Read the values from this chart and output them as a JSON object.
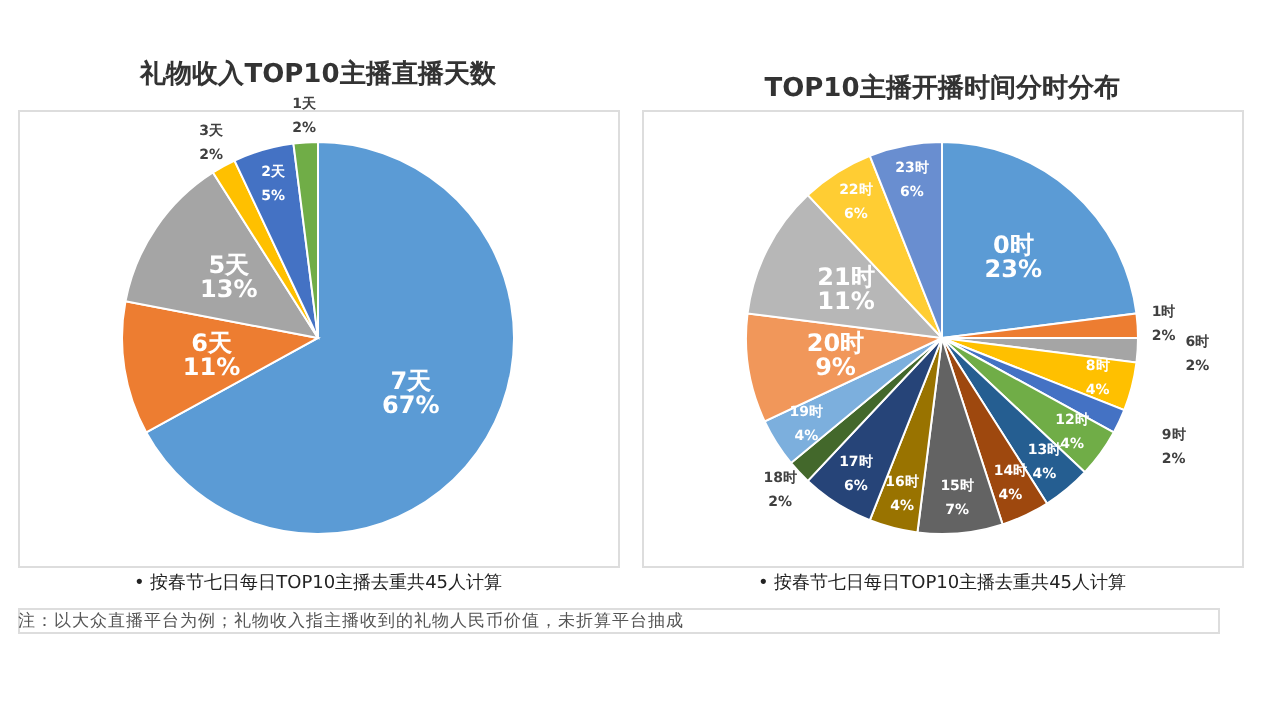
{
  "chart_data": [
    {
      "type": "pie",
      "title": "礼物收入TOP10主播直播天数",
      "categories": [
        "7天",
        "6天",
        "5天",
        "3天",
        "2天",
        "1天"
      ],
      "values": [
        67,
        11,
        13,
        2,
        5,
        2
      ],
      "value_labels": [
        "67%",
        "11%",
        "13%",
        "2%",
        "5%",
        "2%"
      ],
      "colors": [
        "#5b9bd5",
        "#ed7d31",
        "#a5a5a5",
        "#ffc000",
        "#4472c4",
        "#70ad47"
      ],
      "legend": false,
      "annotations": [
        "• 按春节七日每日TOP10主播去重共45人计算",
        "注：以大众直播平台为例；礼物收入指主播收到的礼物人民币价值，未折算平台抽成"
      ]
    },
    {
      "type": "pie",
      "title": "TOP10主播开播时间分时分布",
      "categories": [
        "0时",
        "1时",
        "6时",
        "8时",
        "9时",
        "12时",
        "13时",
        "14时",
        "15时",
        "16时",
        "17时",
        "18时",
        "19时",
        "20时",
        "21时",
        "22时",
        "23时"
      ],
      "values": [
        23,
        2,
        2,
        4,
        2,
        4,
        4,
        4,
        7,
        4,
        6,
        2,
        4,
        9,
        11,
        6,
        6
      ],
      "value_labels": [
        "23%",
        "2%",
        "2%",
        "4%",
        "2%",
        "4%",
        "4%",
        "4%",
        "7%",
        "4%",
        "6%",
        "2%",
        "4%",
        "9%",
        "11%",
        "6%",
        "6%"
      ],
      "colors": [
        "#5b9bd5",
        "#ed7d31",
        "#a5a5a5",
        "#ffc000",
        "#4472c4",
        "#70ad47",
        "#255e91",
        "#9e480e",
        "#636363",
        "#997300",
        "#264478",
        "#43682b",
        "#7cafdd",
        "#f1975a",
        "#b7b7b7",
        "#ffcd33",
        "#698ed0"
      ],
      "legend": false,
      "annotations": [
        "• 按春节七日每日TOP10主播去重共45人计算"
      ]
    }
  ]
}
